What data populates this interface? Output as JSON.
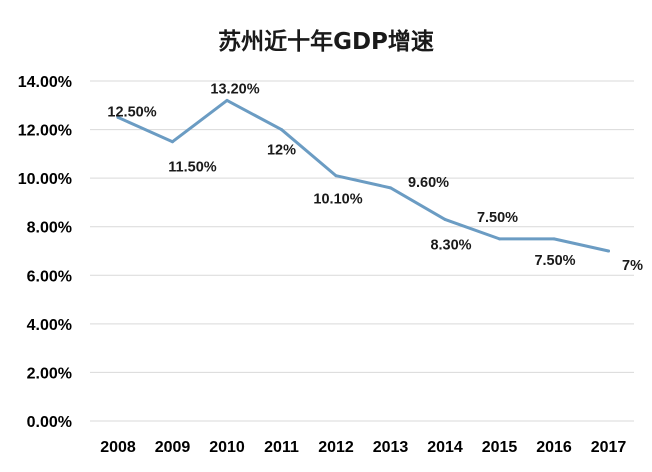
{
  "chart_data": {
    "type": "line",
    "title": "苏州近十年GDP增速",
    "xlabel": "",
    "ylabel": "",
    "categories": [
      "2008",
      "2009",
      "2010",
      "2011",
      "2012",
      "2013",
      "2014",
      "2015",
      "2016",
      "2017"
    ],
    "series": [
      {
        "values": [
          12.5,
          11.5,
          13.2,
          12.0,
          10.1,
          9.6,
          8.3,
          7.5,
          7.5,
          7.0
        ],
        "data_labels": [
          "12.50%",
          "11.50%",
          "13.20%",
          "12%",
          "10.10%",
          "9.60%",
          "8.30%",
          "7.50%",
          "7.50%",
          "7%"
        ],
        "color": "#6b9cc3"
      }
    ],
    "ylim": [
      0,
      14
    ],
    "yticks": [
      0,
      2,
      4,
      6,
      8,
      10,
      12,
      14
    ],
    "ytick_labels": [
      "0.00%",
      "2.00%",
      "4.00%",
      "6.00%",
      "8.00%",
      "10.00%",
      "12.00%",
      "14.00%"
    ],
    "grid": true,
    "legend": "none",
    "gridline_color": "#d9d9d9"
  }
}
